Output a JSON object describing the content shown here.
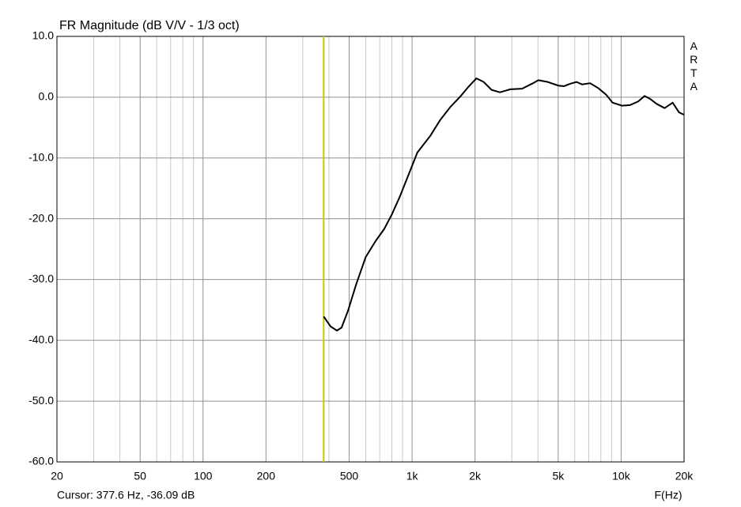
{
  "chart_data": {
    "type": "line",
    "title": "FR Magnitude (dB V/V - 1/3 oct)",
    "x_label": "F(Hz)",
    "watermark": "ARTA",
    "xscale": "log",
    "grid": true,
    "xlim": [
      20,
      20000
    ],
    "ylim": [
      -60,
      10
    ],
    "xticks": [
      20,
      50,
      100,
      200,
      500,
      {
        "value": 1000,
        "label": "1k"
      },
      {
        "value": 2000,
        "label": "2k"
      },
      {
        "value": 5000,
        "label": "5k"
      },
      {
        "value": 10000,
        "label": "10k"
      },
      {
        "value": 20000,
        "label": "20k"
      }
    ],
    "x_minor_grid": [
      30,
      40,
      60,
      70,
      80,
      90,
      300,
      400,
      600,
      700,
      800,
      900,
      3000,
      4000,
      6000,
      7000,
      8000,
      9000
    ],
    "yticks": [
      {
        "value": 10,
        "label": "10.0"
      },
      {
        "value": 0,
        "label": "0.0"
      },
      {
        "value": -10,
        "label": "-10.0"
      },
      {
        "value": -20,
        "label": "-20.0"
      },
      {
        "value": -30,
        "label": "-30.0"
      },
      {
        "value": -40,
        "label": "-40.0"
      },
      {
        "value": -50,
        "label": "-50.0"
      },
      {
        "value": -60,
        "label": "-60.0"
      }
    ],
    "cursor": {
      "label": "Cursor: 377.6 Hz, -36.09 dB",
      "x": 377.6,
      "y": -36.09,
      "color": "#c8c800"
    },
    "series": [
      {
        "color": "#000000",
        "x": [
          377.6,
          407,
          437,
          460,
          494,
          540,
          600,
          668,
          735,
          800,
          875,
          958,
          1060,
          1220,
          1360,
          1525,
          1700,
          1860,
          2030,
          2200,
          2400,
          2630,
          2950,
          3360,
          3740,
          4020,
          4460,
          5010,
          5320,
          5700,
          6120,
          6500,
          7100,
          7770,
          8480,
          9100,
          10100,
          11030,
          12070,
          12950,
          13780,
          14780,
          16150,
          17640,
          18920,
          20000
        ],
        "values": [
          -36.09,
          -37.7,
          -38.4,
          -37.9,
          -35.1,
          -30.8,
          -26.3,
          -23.7,
          -21.7,
          -19.3,
          -16.3,
          -12.9,
          -9.1,
          -6.4,
          -3.8,
          -1.6,
          0.1,
          1.7,
          3.1,
          2.5,
          1.2,
          0.8,
          1.3,
          1.4,
          2.2,
          2.8,
          2.5,
          1.9,
          1.8,
          2.2,
          2.5,
          2.1,
          2.3,
          1.5,
          0.4,
          -0.9,
          -1.4,
          -1.3,
          -0.7,
          0.2,
          -0.3,
          -1.1,
          -1.8,
          -0.9,
          -2.5,
          -2.9
        ]
      }
    ]
  }
}
